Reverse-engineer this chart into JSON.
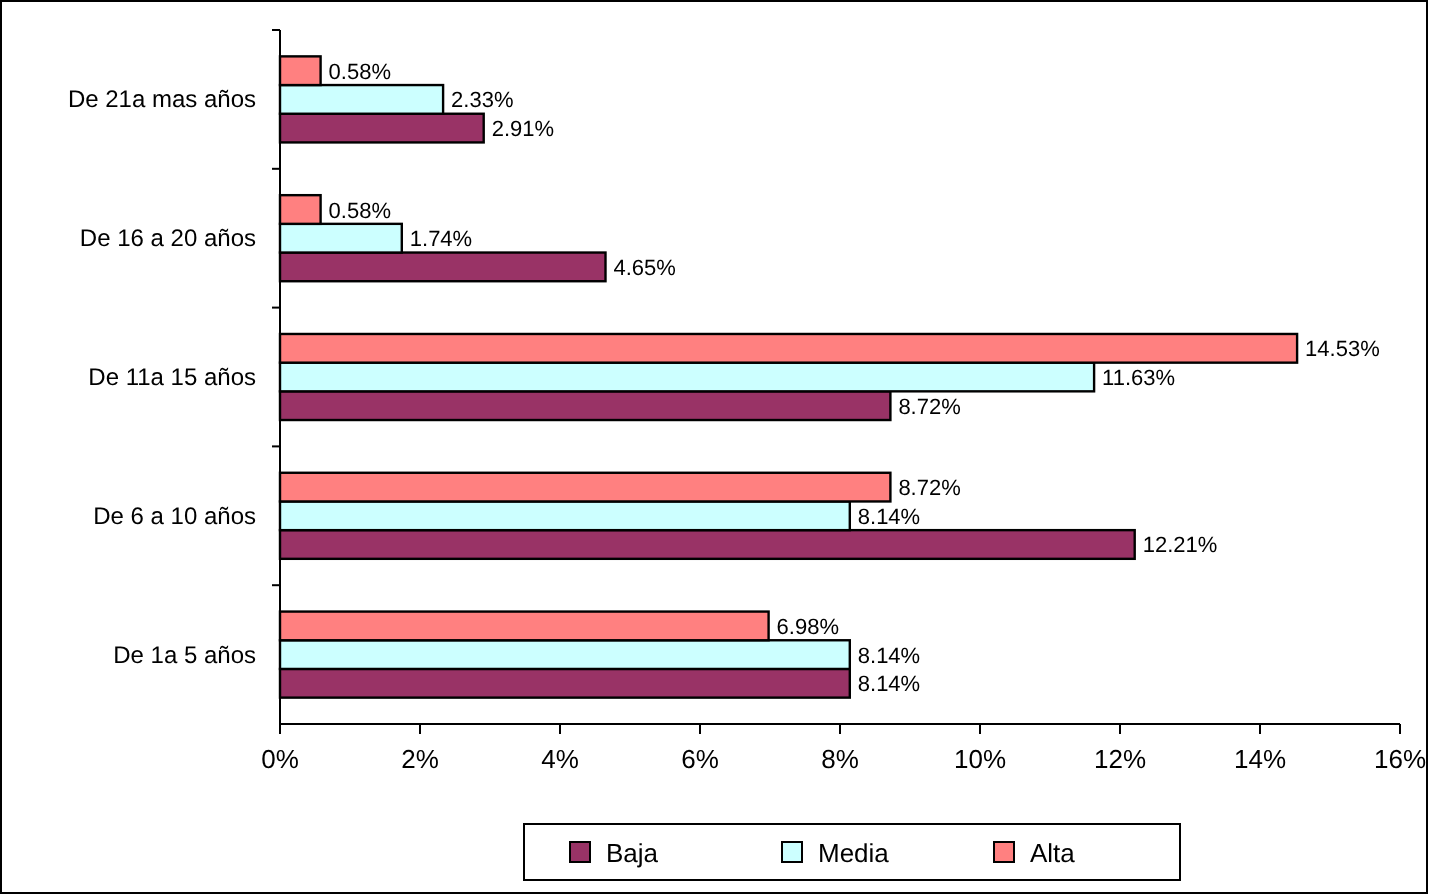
{
  "chart_data": {
    "type": "bar",
    "orientation": "horizontal",
    "categories": [
      "De 21a mas años",
      "De 16 a 20 años",
      "De 11a 15 años",
      "De 6 a 10 años",
      "De 1a 5 años"
    ],
    "series": [
      {
        "name": "Baja",
        "color": "#993366",
        "values": [
          2.91,
          4.65,
          8.72,
          12.21,
          8.14
        ],
        "value_labels": [
          "2.91%",
          "4.65%",
          "8.72%",
          "12.21%",
          "8.14%"
        ]
      },
      {
        "name": "Media",
        "color": "#ccffff",
        "values": [
          2.33,
          1.74,
          11.63,
          8.14,
          8.14
        ],
        "value_labels": [
          "2.33%",
          "1.74%",
          "11.63%",
          "8.14%",
          "8.14%"
        ]
      },
      {
        "name": "Alta",
        "color": "#ff8080",
        "values": [
          0.58,
          0.58,
          14.53,
          8.72,
          6.98
        ],
        "value_labels": [
          "0.58%",
          "0.58%",
          "14.53%",
          "8.72%",
          "6.98%"
        ]
      }
    ],
    "xlim": [
      0,
      16
    ],
    "xticks": [
      {
        "value": 0,
        "label": "0%"
      },
      {
        "value": 2,
        "label": "2%"
      },
      {
        "value": 4,
        "label": "4%"
      },
      {
        "value": 6,
        "label": "6%"
      },
      {
        "value": 8,
        "label": "8%"
      },
      {
        "value": 10,
        "label": "10%"
      },
      {
        "value": 12,
        "label": "12%"
      },
      {
        "value": 14,
        "label": "14%"
      },
      {
        "value": 16,
        "label": "16%"
      }
    ],
    "legend": "bottom",
    "grid": false
  }
}
